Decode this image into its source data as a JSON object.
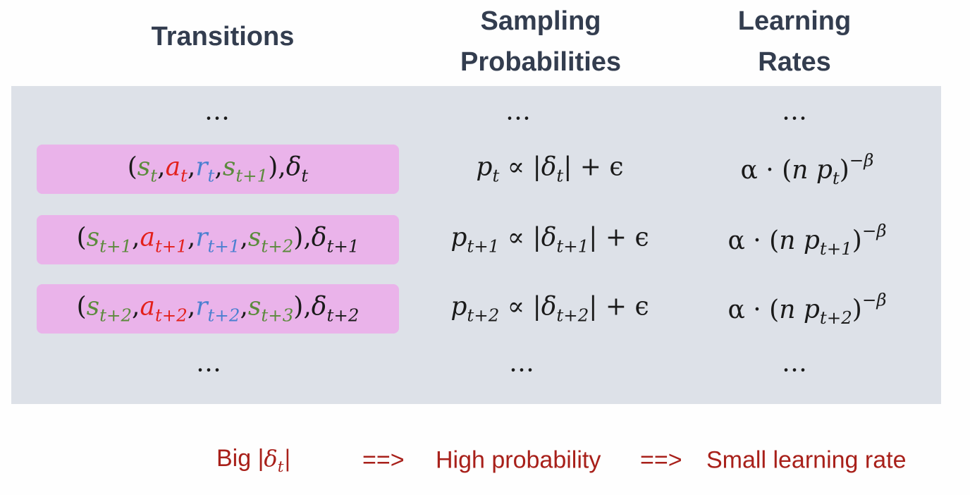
{
  "headers": [
    [
      "Transitions"
    ],
    [
      "Sampling",
      "Probabilities"
    ],
    [
      "Learning",
      "Rates"
    ]
  ],
  "colors": {
    "s": "#5b8a3c",
    "a": "#e3201b",
    "r": "#4a7fd0",
    "text": "#1a1a1a",
    "footer": "#a8201a",
    "header": "#333d4f",
    "panel": "#dde1e8",
    "highlight": "#eab3ea"
  },
  "rows": [
    {
      "highlight": false,
      "cells": [
        [
          {
            "t": "…"
          }
        ],
        [
          {
            "t": "…"
          }
        ],
        [
          {
            "t": "…"
          }
        ]
      ]
    },
    {
      "highlight": true,
      "cells": [
        [
          {
            "t": "("
          },
          {
            "t": "s",
            "sub": "t",
            "c": "s"
          },
          {
            "t": ","
          },
          {
            "t": "a",
            "sub": "t",
            "c": "a"
          },
          {
            "t": ","
          },
          {
            "t": "r",
            "sub": "t",
            "c": "r"
          },
          {
            "t": ","
          },
          {
            "t": "s",
            "sub": "t+1",
            "c": "s"
          },
          {
            "t": "),"
          },
          {
            "t": "δ",
            "sub": "t"
          }
        ],
        [
          {
            "t": "p",
            "sub": "t"
          },
          {
            "t": " ∝ |"
          },
          {
            "t": "δ",
            "sub": "t"
          },
          {
            "t": "| + ϵ"
          }
        ],
        [
          {
            "t": "α · ("
          },
          {
            "t": "n"
          },
          {
            "t": " "
          },
          {
            "t": "p",
            "sub": "t"
          },
          {
            "t": ")",
            "sup": "−β"
          }
        ]
      ]
    },
    {
      "highlight": true,
      "cells": [
        [
          {
            "t": "("
          },
          {
            "t": "s",
            "sub": "t+1",
            "c": "s"
          },
          {
            "t": ","
          },
          {
            "t": "a",
            "sub": "t+1",
            "c": "a"
          },
          {
            "t": ","
          },
          {
            "t": "r",
            "sub": "t+1",
            "c": "r"
          },
          {
            "t": ","
          },
          {
            "t": "s",
            "sub": "t+2",
            "c": "s"
          },
          {
            "t": "),"
          },
          {
            "t": "δ",
            "sub": "t+1"
          }
        ],
        [
          {
            "t": "p",
            "sub": "t+1"
          },
          {
            "t": " ∝ |"
          },
          {
            "t": "δ",
            "sub": "t+1"
          },
          {
            "t": "| + ϵ"
          }
        ],
        [
          {
            "t": "α · ("
          },
          {
            "t": "n"
          },
          {
            "t": " "
          },
          {
            "t": "p",
            "sub": "t+1"
          },
          {
            "t": ")",
            "sup": "−β"
          }
        ]
      ]
    },
    {
      "highlight": true,
      "cells": [
        [
          {
            "t": "("
          },
          {
            "t": "s",
            "sub": "t+2",
            "c": "s"
          },
          {
            "t": ","
          },
          {
            "t": "a",
            "sub": "t+2",
            "c": "a"
          },
          {
            "t": ","
          },
          {
            "t": "r",
            "sub": "t+2",
            "c": "r"
          },
          {
            "t": ","
          },
          {
            "t": "s",
            "sub": "t+3",
            "c": "s"
          },
          {
            "t": "),"
          },
          {
            "t": "δ",
            "sub": "t+2"
          }
        ],
        [
          {
            "t": "p",
            "sub": "t+2"
          },
          {
            "t": " ∝ |"
          },
          {
            "t": "δ",
            "sub": "t+2"
          },
          {
            "t": "| + ϵ"
          }
        ],
        [
          {
            "t": "α · ("
          },
          {
            "t": "n"
          },
          {
            "t": " "
          },
          {
            "t": "p",
            "sub": "t+2"
          },
          {
            "t": ")",
            "sup": "−β"
          }
        ]
      ]
    },
    {
      "highlight": false,
      "cells": [
        [
          {
            "t": "…"
          }
        ],
        [
          {
            "t": "…"
          }
        ],
        [
          {
            "t": "…"
          }
        ]
      ]
    }
  ],
  "footer": [
    [
      {
        "t": "Big |",
        "sans": true
      },
      {
        "t": "δ",
        "sub": "t"
      },
      {
        "t": "|"
      }
    ],
    [
      {
        "t": "==>",
        "sans": true
      }
    ],
    [
      {
        "t": "High probability",
        "sans": true
      }
    ],
    [
      {
        "t": "==>",
        "sans": true
      }
    ],
    [
      {
        "t": "Small learning rate",
        "sans": true
      }
    ]
  ]
}
